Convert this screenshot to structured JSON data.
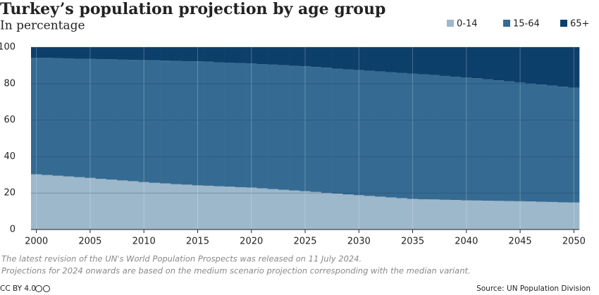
{
  "chart_data": {
    "type": "stacked-bar",
    "title": "Turkey’s population projection by age group",
    "subtitle": "In percentage",
    "x": [
      2000,
      2001,
      2002,
      2003,
      2004,
      2005,
      2006,
      2007,
      2008,
      2009,
      2010,
      2011,
      2012,
      2013,
      2014,
      2015,
      2016,
      2017,
      2018,
      2019,
      2020,
      2021,
      2022,
      2023,
      2024,
      2025,
      2026,
      2027,
      2028,
      2029,
      2030,
      2031,
      2032,
      2033,
      2034,
      2035,
      2036,
      2037,
      2038,
      2039,
      2040,
      2041,
      2042,
      2043,
      2044,
      2045,
      2046,
      2047,
      2048,
      2049,
      2050
    ],
    "series": [
      {
        "name": "0-14",
        "color": "#9db7cb",
        "values": [
          30.3,
          29.9,
          29.5,
          29.1,
          28.7,
          28.3,
          27.8,
          27.4,
          26.9,
          26.5,
          26.0,
          25.6,
          25.3,
          24.9,
          24.6,
          24.2,
          24.0,
          23.7,
          23.5,
          23.2,
          23.0,
          22.6,
          22.2,
          21.8,
          21.4,
          21.0,
          20.6,
          20.1,
          19.7,
          19.2,
          18.8,
          18.4,
          18.0,
          17.6,
          17.2,
          16.8,
          16.6,
          16.5,
          16.3,
          16.2,
          16.0,
          15.9,
          15.8,
          15.7,
          15.6,
          15.5,
          15.4,
          15.2,
          15.1,
          14.9,
          14.8
        ]
      },
      {
        "name": "15-64",
        "color": "#356b92",
        "values": [
          63.9,
          64.2,
          64.4,
          64.7,
          64.9,
          65.2,
          65.6,
          65.9,
          66.2,
          66.5,
          66.9,
          67.2,
          67.3,
          67.6,
          67.7,
          68.0,
          68.0,
          68.0,
          68.0,
          68.0,
          68.0,
          68.1,
          68.2,
          68.3,
          68.4,
          68.5,
          68.5,
          68.6,
          68.5,
          68.6,
          68.6,
          68.6,
          68.6,
          68.7,
          68.7,
          68.7,
          68.5,
          68.2,
          67.9,
          67.6,
          67.4,
          67.0,
          66.5,
          66.1,
          65.6,
          65.2,
          64.7,
          64.3,
          63.8,
          63.4,
          62.9
        ]
      },
      {
        "name": "65+",
        "color": "#0d3f6b",
        "values": [
          5.8,
          5.9,
          6.1,
          6.2,
          6.4,
          6.5,
          6.6,
          6.7,
          6.9,
          7.0,
          7.1,
          7.2,
          7.4,
          7.5,
          7.7,
          7.8,
          8.0,
          8.3,
          8.5,
          8.8,
          9.0,
          9.3,
          9.6,
          9.9,
          10.2,
          10.5,
          10.9,
          11.3,
          11.8,
          12.2,
          12.6,
          13.0,
          13.4,
          13.7,
          14.1,
          14.5,
          14.9,
          15.3,
          15.8,
          16.2,
          16.6,
          17.1,
          17.7,
          18.2,
          18.8,
          19.3,
          19.9,
          20.5,
          21.1,
          21.7,
          22.3
        ]
      }
    ],
    "xlim": [
      1999.5,
      2050.5
    ],
    "xticks": [
      2000,
      2005,
      2010,
      2015,
      2020,
      2025,
      2030,
      2035,
      2040,
      2045,
      2050
    ],
    "ylim": [
      0,
      100
    ],
    "yticks": [
      0,
      20,
      40,
      60,
      80,
      100
    ],
    "grid": true,
    "legend": "top-right",
    "notes": [
      "The latest revision of the UN's World Population Prospects was released on 11 July 2024.",
      "Projections for 2024 onwards are based on the medium scenario projection corresponding with the median variant."
    ],
    "license": "CC BY 4.0",
    "source": "Source: UN Population Division"
  }
}
